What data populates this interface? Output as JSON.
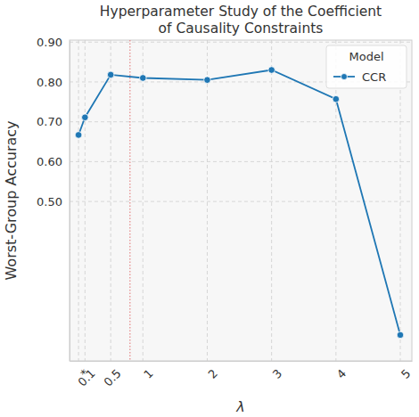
{
  "chart_data": {
    "type": "line",
    "title": "Hyperparameter Study of the Coefficient\nof Causality Constraints",
    "x_label": "λ",
    "y_label": "Worst-Group Accuracy",
    "x": [
      0,
      0.1,
      0.5,
      1,
      2,
      3,
      4,
      5
    ],
    "series": [
      {
        "name": "CCR",
        "color": "#1f77b4",
        "marker": "circle",
        "line_style": "solid",
        "values": [
          0.667,
          0.711,
          0.818,
          0.81,
          0.805,
          0.83,
          0.757,
          0.165
        ]
      }
    ],
    "xlim": [
      -0.14,
      5.18
    ],
    "ylim": [
      0.1,
      0.905
    ],
    "xticks": [
      {
        "value": 0,
        "label": "*"
      },
      0.1,
      0.5,
      1,
      2,
      3,
      4,
      5
    ],
    "yticks": [
      {
        "value": 0.5,
        "label": "0.50"
      },
      {
        "value": 0.6,
        "label": "0.60"
      },
      {
        "value": 0.7,
        "label": "0.70"
      },
      {
        "value": 0.8,
        "label": "0.80"
      },
      {
        "value": 0.9,
        "label": "0.90"
      }
    ],
    "grid": true,
    "legend": "upper right",
    "legend_title": "Model",
    "reference_lines": [
      {
        "x": 0.8,
        "color": "#e07070",
        "line_style": "dotted"
      }
    ]
  }
}
